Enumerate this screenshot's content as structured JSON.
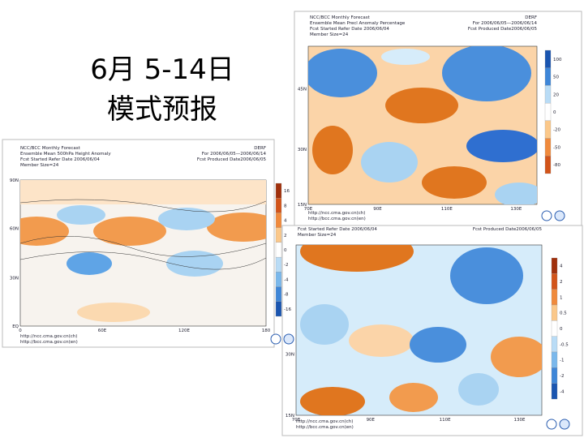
{
  "title": {
    "line1": "6月 5-14日",
    "line2": "模式预报"
  },
  "panels": [
    {
      "header": [
        [
          "NCC/BCC Monthly Forecast",
          "DERF"
        ],
        [
          "Ensemble Mean 500hPa Height Anomaly",
          "For 2006/06/05—2006/06/14"
        ],
        [
          "Fcst Started Refer Date 2006/06/04",
          "Fcst Produced Date2006/06/05"
        ],
        [
          "Member Size=24",
          ""
        ]
      ],
      "lats": [
        "90N",
        "60N",
        "30N",
        "EQ"
      ],
      "lons": [
        "0",
        "60E",
        "120E",
        "180"
      ],
      "colorbar": [
        "16",
        "8",
        "4",
        "2",
        "0",
        "-2",
        "-4",
        "-8",
        "-16"
      ],
      "urls": [
        "http://ncc.cma.gov.cn(ch)",
        "http://bcc.cma.gov.cn(en)"
      ]
    },
    {
      "header": [
        [
          "NCC/BCC Monthly Forecast",
          "DERF"
        ],
        [
          "Ensemble Mean Precl Anomaly Percentage",
          "For 2006/06/05—2006/06/14"
        ],
        [
          "Fcst Started Refer Date 2006/06/04",
          "Fcst Produced Date2006/06/05"
        ],
        [
          "Member Size=24",
          ""
        ]
      ],
      "lats": [
        "45N",
        "30N",
        "15N"
      ],
      "lons": [
        "70E",
        "90E",
        "110E",
        "130E"
      ],
      "colorbar": [
        "100",
        "50",
        "20",
        "0",
        "-20",
        "-50",
        "-80"
      ],
      "urls": [
        "http://ncc.cma.gov.cn(ch)",
        "http://bcc.cma.gov.cn(en)"
      ]
    },
    {
      "header": [
        [
          "Fcst Started Refer Date 2006/06/04",
          "Fcst Produced Date2006/06/05"
        ],
        [
          "Member Size=24",
          ""
        ]
      ],
      "lats": [
        "30N",
        "15N"
      ],
      "lons": [
        "70E",
        "90E",
        "110E",
        "130E"
      ],
      "colorbar": [
        "4",
        "2",
        "1",
        "0.5",
        "0",
        "-0.5",
        "-1",
        "-2",
        "-4"
      ],
      "urls": [
        "http://ncc.cma.gov.cn(ch)",
        "http://bcc.cma.gov.cn(en)"
      ]
    }
  ]
}
